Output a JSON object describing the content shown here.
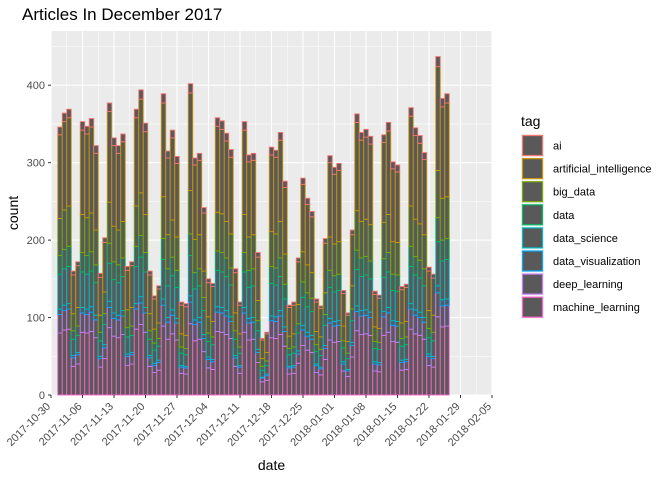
{
  "chart_data": {
    "type": "bar",
    "stacked": true,
    "title": "Articles In December 2017",
    "xlabel": "date",
    "ylabel": "count",
    "xlim": [
      "2017-10-30",
      "2018-02-05"
    ],
    "ylim": [
      0,
      470
    ],
    "x_ticks": [
      "2017-10-30",
      "2017-11-06",
      "2017-11-13",
      "2017-11-20",
      "2017-11-27",
      "2017-12-04",
      "2017-12-11",
      "2017-12-18",
      "2017-12-25",
      "2018-01-01",
      "2018-01-08",
      "2018-01-15",
      "2018-01-22",
      "2018-01-29",
      "2018-02-05"
    ],
    "y_ticks": [
      0,
      100,
      200,
      300,
      400
    ],
    "grid": true,
    "legend": {
      "title": "tag",
      "position": "right"
    },
    "start_date": "2017-11-01",
    "bar_fill": "#595959",
    "panel_background": "#ebebeb",
    "totals": [
      346,
      364,
      369,
      160,
      172,
      353,
      347,
      357,
      322,
      157,
      203,
      377,
      332,
      322,
      337,
      166,
      172,
      369,
      394,
      351,
      160,
      128,
      141,
      389,
      315,
      342,
      308,
      120,
      118,
      402,
      306,
      312,
      242,
      150,
      144,
      358,
      354,
      338,
      317,
      163,
      120,
      353,
      310,
      312,
      184,
      73,
      81,
      320,
      316,
      339,
      276,
      116,
      120,
      177,
      280,
      254,
      237,
      124,
      115,
      202,
      309,
      294,
      299,
      135,
      106,
      213,
      363,
      339,
      343,
      334,
      134,
      129,
      336,
      352,
      301,
      297,
      140,
      143,
      371,
      345,
      335,
      313,
      165,
      156,
      437,
      383,
      389
    ],
    "series": [
      {
        "name": "ai",
        "color": "#F8766D",
        "share": 0.03
      },
      {
        "name": "artificial_intelligence",
        "color": "#CD9600",
        "share": 0.31
      },
      {
        "name": "big_data",
        "color": "#7CAE00",
        "share": 0.14
      },
      {
        "name": "data",
        "color": "#00BE67",
        "share": 0.07
      },
      {
        "name": "data_science",
        "color": "#00BFC4",
        "share": 0.13
      },
      {
        "name": "data_visualization",
        "color": "#00A9FF",
        "share": 0.02
      },
      {
        "name": "deep_learning",
        "color": "#C77CFF",
        "share": 0.07
      },
      {
        "name": "machine_learning",
        "color": "#FF61CC",
        "share": 0.23
      }
    ]
  }
}
